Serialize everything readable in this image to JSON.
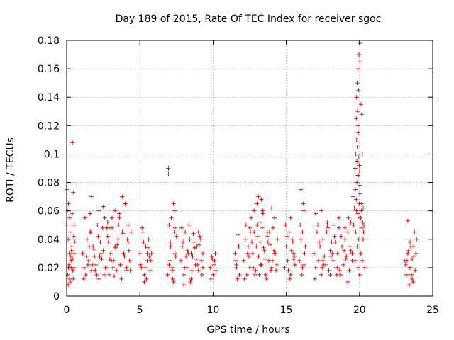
{
  "chart_data": {
    "type": "scatter",
    "title": "Day 189 of 2015, Rate Of TEC Index for receiver sgoc",
    "xlabel": "GPS time / hours",
    "ylabel": "ROTI / TECUs",
    "xlim": [
      0,
      25
    ],
    "ylim": [
      0,
      0.18
    ],
    "grid": true,
    "x_ticks": [
      0,
      5,
      10,
      15,
      20,
      25
    ],
    "x_tick_labels": [
      "0",
      "5",
      "10",
      "15",
      "20",
      "25"
    ],
    "y_ticks": [
      0,
      0.02,
      0.04,
      0.06,
      0.08,
      0.1,
      0.12,
      0.14,
      0.16,
      0.18
    ],
    "y_tick_labels": [
      "0",
      "0.02",
      "0.04",
      "0.06",
      "0.08",
      "0.1",
      "0.12",
      "0.14",
      "0.16",
      "0.18"
    ],
    "marker": "+",
    "color": "#ff0000",
    "series": [
      {
        "name": "ROTI",
        "x": [
          0.0,
          0.05,
          0.1,
          0.12,
          0.18,
          0.22,
          0.25,
          0.3,
          0.35,
          0.4,
          0.45,
          0.5,
          0.55,
          0.08,
          0.15,
          0.2,
          0.28,
          0.33,
          0.42,
          0.48,
          0.1,
          0.2,
          0.3,
          0.4,
          0.5,
          0.02,
          0.12,
          0.38,
          0.45,
          0.5,
          1.1,
          1.2,
          1.3,
          1.4,
          1.5,
          1.6,
          1.7,
          1.8,
          1.9,
          2.0,
          2.1,
          2.2,
          2.3,
          2.4,
          2.5,
          2.6,
          2.7,
          2.8,
          2.9,
          3.0,
          3.1,
          3.2,
          3.3,
          3.4,
          3.5,
          3.6,
          3.7,
          3.8,
          3.9,
          4.0,
          4.1,
          4.2,
          4.3,
          4.4,
          1.15,
          1.35,
          1.55,
          1.75,
          1.95,
          2.15,
          2.35,
          2.55,
          2.75,
          2.95,
          3.15,
          3.35,
          3.55,
          3.75,
          3.95,
          4.15,
          4.35,
          1.25,
          1.45,
          1.65,
          1.85,
          2.05,
          2.25,
          2.45,
          2.65,
          2.85,
          3.05,
          3.25,
          3.45,
          3.65,
          3.85,
          4.05,
          4.25,
          1.6,
          1.7,
          2.5,
          2.8,
          3.3,
          3.6,
          3.8,
          4.0,
          4.2,
          2.2,
          2.9,
          3.1,
          5.0,
          5.1,
          5.2,
          5.3,
          5.4,
          5.5,
          5.6,
          5.7,
          5.8,
          5.05,
          5.25,
          5.45,
          5.65,
          5.15,
          5.35,
          5.55,
          5.75,
          5.3,
          5.5,
          6.9,
          7.0,
          7.05,
          7.1,
          7.2,
          7.3,
          7.4,
          7.5,
          7.15,
          7.25,
          7.35,
          7.45,
          6.95,
          7.08,
          7.22,
          7.38,
          6.95,
          7.0,
          7.3,
          7.4,
          7.8,
          7.9,
          8.0,
          8.1,
          8.2,
          8.3,
          8.4,
          8.5,
          8.6,
          8.7,
          8.8,
          8.9,
          9.0,
          9.1,
          9.2,
          9.3,
          7.85,
          8.05,
          8.25,
          8.45,
          8.65,
          8.85,
          9.05,
          9.25,
          7.95,
          8.15,
          8.35,
          8.55,
          8.75,
          8.95,
          9.15,
          8.0,
          8.5,
          9.0,
          9.3,
          9.8,
          9.9,
          10.0,
          10.1,
          10.2,
          9.85,
          10.05,
          10.15,
          9.95,
          11.5,
          11.6,
          11.7,
          11.8,
          11.55,
          11.65,
          11.75,
          11.6,
          12.1,
          12.2,
          12.3,
          12.4,
          12.5,
          12.6,
          12.7,
          12.8,
          12.9,
          13.0,
          13.1,
          13.2,
          13.3,
          13.4,
          13.5,
          13.6,
          13.7,
          13.8,
          13.9,
          14.0,
          14.1,
          14.2,
          14.3,
          14.4,
          12.15,
          12.35,
          12.55,
          12.75,
          12.95,
          13.15,
          13.35,
          13.55,
          13.75,
          13.95,
          14.15,
          14.35,
          12.25,
          12.45,
          12.65,
          12.85,
          13.05,
          13.25,
          13.45,
          13.65,
          13.85,
          14.05,
          14.25,
          12.8,
          13.0,
          13.1,
          13.2,
          13.3,
          13.4,
          13.7,
          14.0,
          14.2,
          12.5,
          14.9,
          15.0,
          15.1,
          15.2,
          15.3,
          15.4,
          15.5,
          15.6,
          14.95,
          15.15,
          15.35,
          15.55,
          15.05,
          15.25,
          15.45,
          15.3,
          15.5,
          15.9,
          16.0,
          16.1,
          16.2,
          16.3,
          15.95,
          16.05,
          16.15,
          16.25,
          16.0,
          16.1,
          16.2,
          16.9,
          17.0,
          17.1,
          17.2,
          17.3,
          17.4,
          17.5,
          17.6,
          17.7,
          17.8,
          17.9,
          18.0,
          18.1,
          18.2,
          18.3,
          18.4,
          18.5,
          18.6,
          18.7,
          18.8,
          18.9,
          19.0,
          19.1,
          19.2,
          19.3,
          19.4,
          19.5,
          16.95,
          17.25,
          17.55,
          17.85,
          18.15,
          18.45,
          18.75,
          19.05,
          19.35,
          17.15,
          17.45,
          17.75,
          18.05,
          18.35,
          18.65,
          18.95,
          19.25,
          17.0,
          17.4,
          17.8,
          18.2,
          18.6,
          19.0,
          19.4,
          17.5,
          18.0,
          18.5,
          19.2,
          19.5,
          19.6,
          19.7,
          19.75,
          19.8,
          19.85,
          19.9,
          19.95,
          20.0,
          20.05,
          20.1,
          20.15,
          20.2,
          20.25,
          20.3,
          20.35,
          19.55,
          19.65,
          19.72,
          19.78,
          19.82,
          19.88,
          19.92,
          19.98,
          20.02,
          20.08,
          20.12,
          20.18,
          20.22,
          20.28,
          19.7,
          19.75,
          19.8,
          19.82,
          19.85,
          19.88,
          19.9,
          19.92,
          19.95,
          19.98,
          20.0,
          20.02,
          19.78,
          19.8,
          19.84,
          19.86,
          19.9,
          19.93,
          19.96,
          20.0,
          20.04,
          20.1,
          20.15,
          20.2,
          20.25,
          23.1,
          23.2,
          23.3,
          23.4,
          23.5,
          23.6,
          23.7,
          23.8,
          23.9,
          23.15,
          23.35,
          23.55,
          23.75,
          23.25,
          23.45,
          23.65,
          23.85,
          23.3,
          23.5,
          23.7,
          23.4,
          23.6
        ],
        "y": [
          0.075,
          0.06,
          0.04,
          0.02,
          0.03,
          0.045,
          0.01,
          0.025,
          0.035,
          0.108,
          0.073,
          0.05,
          0.038,
          0.015,
          0.022,
          0.055,
          0.028,
          0.032,
          0.018,
          0.042,
          0.008,
          0.012,
          0.02,
          0.026,
          0.03,
          0.05,
          0.065,
          0.058,
          0.012,
          0.02,
          0.03,
          0.02,
          0.015,
          0.04,
          0.025,
          0.045,
          0.018,
          0.035,
          0.028,
          0.022,
          0.05,
          0.012,
          0.038,
          0.026,
          0.032,
          0.055,
          0.02,
          0.042,
          0.015,
          0.03,
          0.048,
          0.025,
          0.035,
          0.018,
          0.04,
          0.058,
          0.022,
          0.045,
          0.03,
          0.065,
          0.02,
          0.038,
          0.025,
          0.045,
          0.012,
          0.028,
          0.035,
          0.022,
          0.018,
          0.042,
          0.03,
          0.015,
          0.048,
          0.026,
          0.02,
          0.034,
          0.05,
          0.012,
          0.028,
          0.04,
          0.018,
          0.055,
          0.022,
          0.045,
          0.033,
          0.015,
          0.028,
          0.048,
          0.02,
          0.038,
          0.025,
          0.014,
          0.036,
          0.022,
          0.044,
          0.018,
          0.032,
          0.058,
          0.07,
          0.063,
          0.052,
          0.06,
          0.055,
          0.07,
          0.065,
          0.05,
          0.06,
          0.048,
          0.055,
          0.03,
          0.02,
          0.045,
          0.015,
          0.035,
          0.025,
          0.04,
          0.018,
          0.03,
          0.022,
          0.038,
          0.012,
          0.028,
          0.048,
          0.02,
          0.034,
          0.025,
          0.01,
          0.03,
          0.015,
          0.05,
          0.025,
          0.035,
          0.02,
          0.065,
          0.03,
          0.042,
          0.055,
          0.012,
          0.045,
          0.028,
          0.086,
          0.038,
          0.018,
          0.06,
          0.09,
          0.022,
          0.01,
          0.048,
          0.025,
          0.035,
          0.015,
          0.045,
          0.02,
          0.03,
          0.04,
          0.012,
          0.028,
          0.038,
          0.022,
          0.035,
          0.018,
          0.042,
          0.025,
          0.03,
          0.048,
          0.02,
          0.032,
          0.01,
          0.044,
          0.026,
          0.036,
          0.015,
          0.038,
          0.028,
          0.05,
          0.018,
          0.034,
          0.022,
          0.04,
          0.008,
          0.03,
          0.045,
          0.02,
          0.02,
          0.028,
          0.015,
          0.025,
          0.018,
          0.012,
          0.022,
          0.03,
          0.026,
          0.03,
          0.02,
          0.043,
          0.015,
          0.025,
          0.012,
          0.035,
          0.022,
          0.025,
          0.04,
          0.015,
          0.035,
          0.02,
          0.055,
          0.03,
          0.045,
          0.018,
          0.05,
          0.028,
          0.038,
          0.022,
          0.06,
          0.032,
          0.015,
          0.042,
          0.025,
          0.036,
          0.02,
          0.048,
          0.03,
          0.018,
          0.04,
          0.012,
          0.03,
          0.045,
          0.02,
          0.035,
          0.015,
          0.048,
          0.026,
          0.038,
          0.018,
          0.032,
          0.022,
          0.05,
          0.028,
          0.038,
          0.015,
          0.042,
          0.022,
          0.034,
          0.012,
          0.045,
          0.025,
          0.03,
          0.06,
          0.065,
          0.07,
          0.052,
          0.068,
          0.058,
          0.045,
          0.062,
          0.055,
          0.048,
          0.02,
          0.035,
          0.025,
          0.045,
          0.015,
          0.04,
          0.03,
          0.022,
          0.05,
          0.018,
          0.032,
          0.028,
          0.042,
          0.012,
          0.038,
          0.055,
          0.026,
          0.025,
          0.04,
          0.02,
          0.06,
          0.035,
          0.05,
          0.015,
          0.065,
          0.03,
          0.075,
          0.045,
          0.022,
          0.03,
          0.02,
          0.045,
          0.025,
          0.035,
          0.015,
          0.04,
          0.028,
          0.022,
          0.05,
          0.018,
          0.032,
          0.038,
          0.025,
          0.042,
          0.02,
          0.03,
          0.048,
          0.015,
          0.035,
          0.022,
          0.04,
          0.028,
          0.045,
          0.018,
          0.032,
          0.025,
          0.012,
          0.038,
          0.022,
          0.048,
          0.03,
          0.015,
          0.042,
          0.026,
          0.035,
          0.05,
          0.02,
          0.045,
          0.028,
          0.038,
          0.018,
          0.032,
          0.055,
          0.058,
          0.06,
          0.052,
          0.05,
          0.055,
          0.048,
          0.052,
          0.025,
          0.015,
          0.02,
          0.01,
          0.03,
          0.05,
          0.025,
          0.045,
          0.06,
          0.035,
          0.02,
          0.04,
          0.015,
          0.055,
          0.03,
          0.065,
          0.025,
          0.04,
          0.05,
          0.02,
          0.07,
          0.062,
          0.075,
          0.068,
          0.08,
          0.058,
          0.085,
          0.065,
          0.072,
          0.055,
          0.06,
          0.048,
          0.052,
          0.045,
          0.09,
          0.1,
          0.11,
          0.095,
          0.105,
          0.085,
          0.12,
          0.115,
          0.098,
          0.092,
          0.088,
          0.078,
          0.125,
          0.14,
          0.15,
          0.13,
          0.16,
          0.145,
          0.17,
          0.178,
          0.165,
          0.135,
          0.128,
          0.1,
          0.062,
          0.025,
          0.015,
          0.03,
          0.02,
          0.035,
          0.012,
          0.028,
          0.018,
          0.04,
          0.022,
          0.032,
          0.015,
          0.045,
          0.025,
          0.038,
          0.01,
          0.03,
          0.053,
          0.02,
          0.035,
          0.008,
          0.026
        ]
      }
    ]
  }
}
